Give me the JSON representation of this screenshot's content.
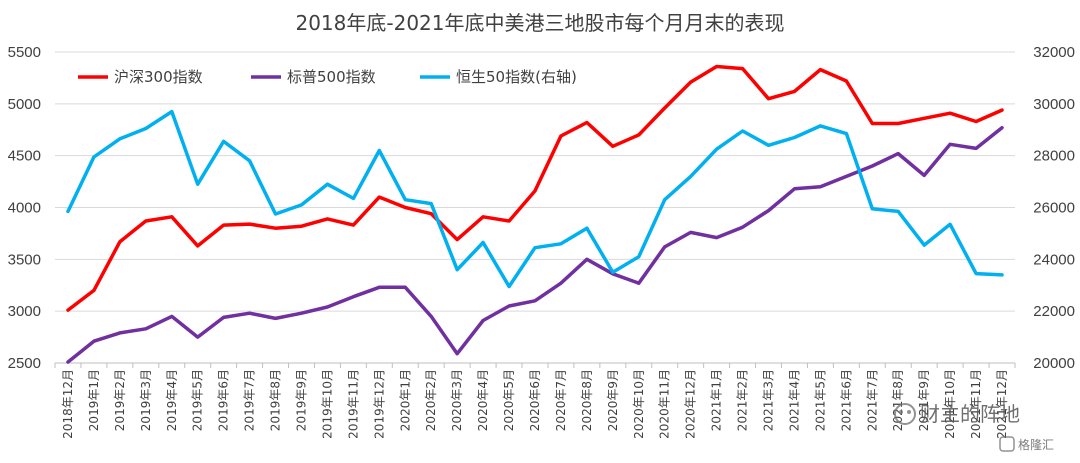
{
  "watermark": {
    "main_text": "财主的阵地",
    "brand_text": "格隆汇"
  },
  "colors": {
    "csi300": "#ff0000",
    "sp500": "#7030a0",
    "hsi50": "#00b0f0",
    "grid": "#d9d9d9",
    "text": "#404040"
  },
  "chart_data": {
    "type": "line",
    "title": "2018年底-2021年底中美港三地股市每个月月末的表现",
    "legend_position": "top-left",
    "grid": true,
    "categories": [
      "2018年12月",
      "2019年1月",
      "2019年2月",
      "2019年3月",
      "2019年4月",
      "2019年5月",
      "2019年6月",
      "2019年7月",
      "2019年8月",
      "2019年9月",
      "2019年10月",
      "2019年11月",
      "2019年12月",
      "2020年1月",
      "2020年2月",
      "2020年3月",
      "2020年4月",
      "2020年5月",
      "2020年6月",
      "2020年7月",
      "2020年8月",
      "2020年9月",
      "2020年10月",
      "2020年11月",
      "2020年12月",
      "2021年1月",
      "2021年2月",
      "2021年3月",
      "2021年4月",
      "2021年5月",
      "2021年6月",
      "2021年7月",
      "2021年8月",
      "2021年9月",
      "2021年10月",
      "2021年11月",
      "2021年12月"
    ],
    "left_axis": {
      "min": 2500,
      "max": 5500,
      "ticks": [
        "2500",
        "3000",
        "3500",
        "4000",
        "4500",
        "5000",
        "5500"
      ]
    },
    "right_axis": {
      "min": 20000,
      "max": 32000,
      "ticks": [
        "20000",
        "22000",
        "24000",
        "26000",
        "28000",
        "30000",
        "32000"
      ]
    },
    "series": [
      {
        "name": "沪深300指数",
        "axis": "left",
        "color_key": "csi300",
        "values": [
          3010,
          3200,
          3670,
          3870,
          3910,
          3630,
          3830,
          3840,
          3800,
          3820,
          3890,
          3830,
          4100,
          4000,
          3940,
          3690,
          3910,
          3870,
          4160,
          4690,
          4820,
          4590,
          4700,
          4960,
          5210,
          5360,
          5340,
          5050,
          5120,
          5330,
          5220,
          4810,
          4810,
          4860,
          4910,
          4830,
          4940
        ]
      },
      {
        "name": "标普500指数",
        "axis": "left",
        "color_key": "sp500",
        "values": [
          2510,
          2710,
          2790,
          2830,
          2950,
          2750,
          2940,
          2980,
          2930,
          2980,
          3040,
          3140,
          3230,
          3230,
          2950,
          2590,
          2910,
          3050,
          3100,
          3270,
          3500,
          3360,
          3270,
          3620,
          3760,
          3710,
          3810,
          3970,
          4180,
          4200,
          4300,
          4400,
          4520,
          4310,
          4610,
          4570,
          4770
        ]
      },
      {
        "name": "恒生50指数(右轴)",
        "axis": "right",
        "color_key": "hsi50",
        "values": [
          25850,
          27950,
          28650,
          29050,
          29700,
          26900,
          28550,
          27800,
          25750,
          26100,
          26900,
          26350,
          28200,
          26300,
          26150,
          23600,
          24650,
          22950,
          24450,
          24600,
          25200,
          23500,
          24100,
          26300,
          27200,
          28250,
          28950,
          28400,
          28700,
          29150,
          28850,
          25950,
          25850,
          24550,
          25350,
          23450,
          23400
        ]
      }
    ]
  }
}
